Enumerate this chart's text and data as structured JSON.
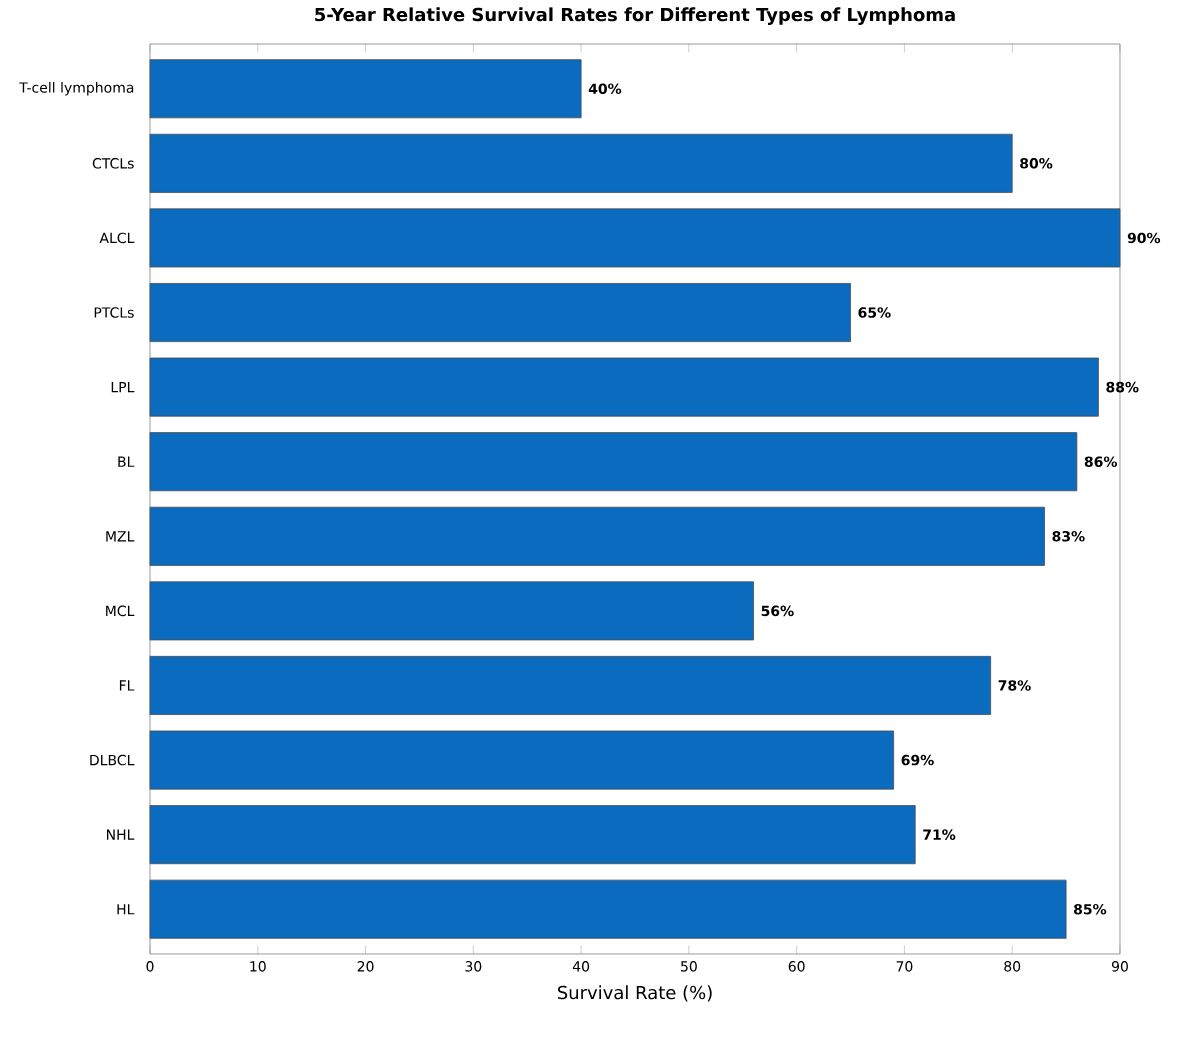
{
  "chart_data": {
    "type": "bar",
    "orientation": "horizontal",
    "title": "5-Year Relative Survival Rates for Different Types of Lymphoma",
    "xlabel": "Survival Rate (%)",
    "categories": [
      "T-cell lymphoma",
      "CTCLs",
      "ALCL",
      "PTCLs",
      "LPL",
      "BL",
      "MZL",
      "MCL",
      "FL",
      "DLBCL",
      "NHL",
      "HL"
    ],
    "values": [
      40,
      80,
      90,
      65,
      88,
      86,
      83,
      56,
      78,
      69,
      71,
      85
    ],
    "value_labels": [
      "40%",
      "80%",
      "90%",
      "65%",
      "88%",
      "86%",
      "83%",
      "56%",
      "78%",
      "69%",
      "71%",
      "85%"
    ],
    "color": "#0a6bbf",
    "xlim": [
      0,
      90
    ],
    "xticks": [
      0,
      10,
      20,
      30,
      40,
      50,
      60,
      70,
      80,
      90
    ],
    "grid": false
  }
}
